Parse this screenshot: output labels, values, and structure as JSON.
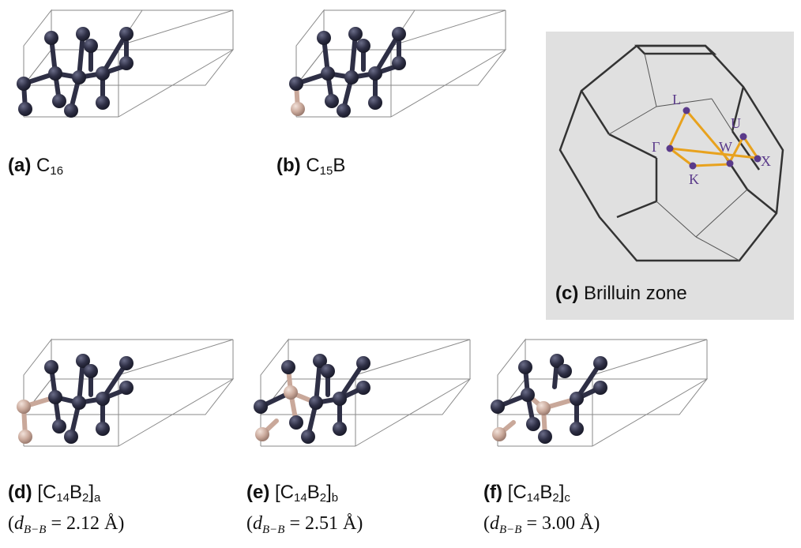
{
  "panels": [
    {
      "tag": "(a)",
      "formula": [
        "C",
        "16",
        "",
        "",
        ""
      ],
      "distance": null
    },
    {
      "tag": "(b)",
      "formula": [
        "C",
        "15",
        "B",
        "",
        ""
      ],
      "distance": null
    },
    {
      "tag": "(d)",
      "formula": [
        "[C",
        "14",
        "B",
        "2",
        "]"
      ],
      "suffix": "a",
      "distance": {
        "label": "d",
        "sub": "B−B",
        "value": "= 2.12 Å"
      }
    },
    {
      "tag": "(e)",
      "formula": [
        "[C",
        "14",
        "B",
        "2",
        "]"
      ],
      "suffix": "b",
      "distance": {
        "label": "d",
        "sub": "B−B",
        "value": "= 2.51 Å"
      }
    },
    {
      "tag": "(f)",
      "formula": [
        "[C",
        "14",
        "B",
        "2",
        "]"
      ],
      "suffix": "c",
      "distance": {
        "label": "d",
        "sub": "B−B",
        "value": "= 3.00 Å"
      }
    }
  ],
  "brillouin": {
    "tag": "(c)",
    "title": "Brilluin zone",
    "points": [
      "L",
      "U",
      "Γ",
      "W",
      "X",
      "K"
    ]
  },
  "colors": {
    "carbon": "#2e2f45",
    "boron": "#c9a89a",
    "path_arrow": "#e8a21e",
    "kpoint": "#5a3a8a",
    "cell_edge": "#8a8a8a"
  }
}
